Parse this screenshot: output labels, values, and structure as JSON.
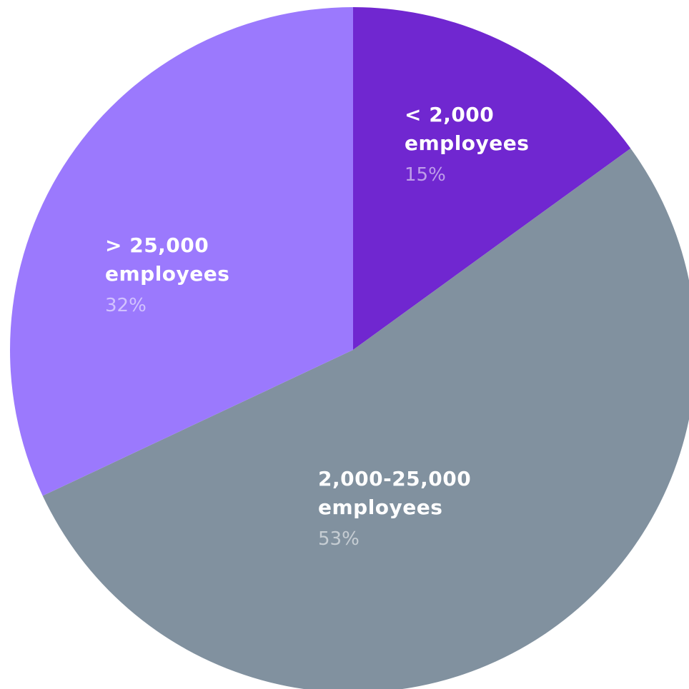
{
  "chart_data": {
    "type": "pie",
    "title": "",
    "start_angle_deg": 0,
    "direction": "clockwise",
    "slices": [
      {
        "name_line1": "< 2,000",
        "name_line2": "employees",
        "value": 15,
        "label": "15%",
        "color": "#7027D0"
      },
      {
        "name_line1": "2,000-25,000",
        "name_line2": "employees",
        "value": 53,
        "label": "53%",
        "color": "#81919F"
      },
      {
        "name_line1": "> 25,000",
        "name_line2": "employees",
        "value": 32,
        "label": "32%",
        "color": "#9B79FD"
      }
    ]
  }
}
